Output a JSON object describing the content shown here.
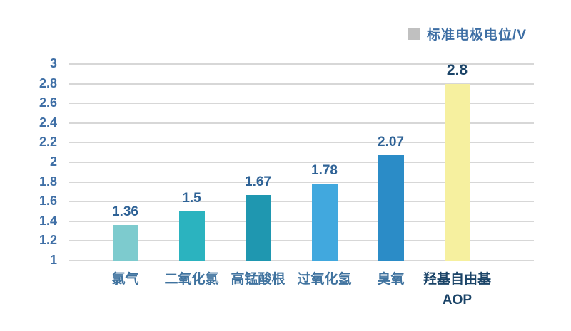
{
  "legend": {
    "label": "标准电极电位/V",
    "swatch_color": "#c0c0c0"
  },
  "chart_data": {
    "type": "bar",
    "title": "",
    "xlabel": "",
    "ylabel": "标准电极电位/V",
    "categories": [
      [
        "氯气"
      ],
      [
        "二氧化氯"
      ],
      [
        "高锰酸根"
      ],
      [
        "过氧化氢"
      ],
      [
        "臭氧"
      ],
      [
        "羟基自由基",
        "AOP"
      ]
    ],
    "values": [
      1.36,
      1.5,
      1.67,
      1.78,
      2.07,
      2.8
    ],
    "value_labels": [
      "1.36",
      "1.5",
      "1.67",
      "1.78",
      "2.07",
      "2.8"
    ],
    "bar_colors": [
      "#7dcbce",
      "#2bb3bf",
      "#1f97b0",
      "#41a8de",
      "#2b8cc7",
      "#f6f09f"
    ],
    "emphasis": [
      false,
      false,
      false,
      false,
      false,
      true
    ],
    "ylim": [
      1,
      3
    ],
    "yticks": [
      "3",
      "2.8",
      "2.6",
      "2.4",
      "2.2",
      "2",
      "1.8",
      "1.6",
      "1.4",
      "1.2",
      "1"
    ],
    "grid": true,
    "legend_position": "top-right",
    "text_colors": {
      "axis": "#3f6fa6",
      "value_label": "#2e6296",
      "emphasis": "#1b4468"
    },
    "gridline_color": "#d7d7d7"
  }
}
